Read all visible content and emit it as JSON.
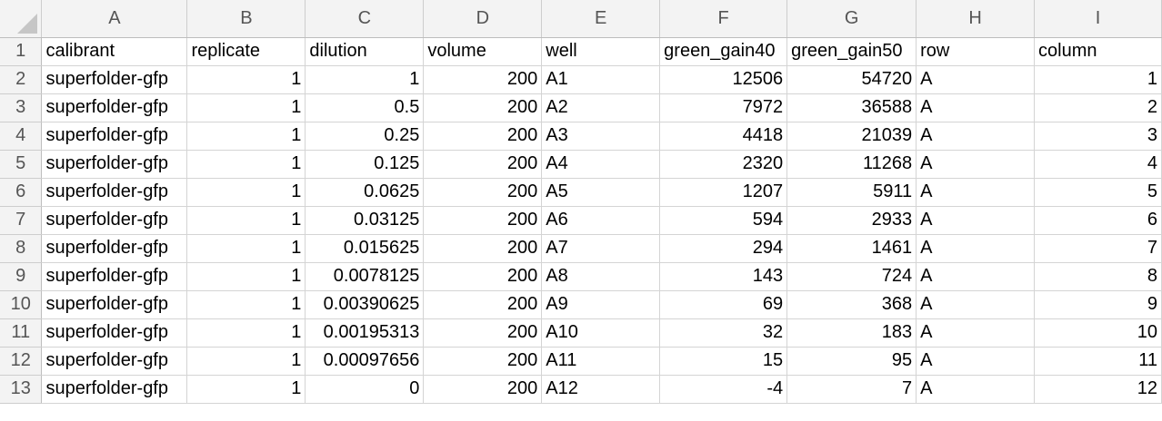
{
  "columns": [
    "A",
    "B",
    "C",
    "D",
    "E",
    "F",
    "G",
    "H",
    "I"
  ],
  "rows": [
    "1",
    "2",
    "3",
    "4",
    "5",
    "6",
    "7",
    "8",
    "9",
    "10",
    "11",
    "12",
    "13"
  ],
  "cells": [
    [
      "calibrant",
      "replicate",
      "dilution",
      "volume",
      "well",
      "green_gain40",
      "green_gain50",
      "row",
      "column"
    ],
    [
      "superfolder-gfp",
      "1",
      "1",
      "200",
      "A1",
      "12506",
      "54720",
      "A",
      "1"
    ],
    [
      "superfolder-gfp",
      "1",
      "0.5",
      "200",
      "A2",
      "7972",
      "36588",
      "A",
      "2"
    ],
    [
      "superfolder-gfp",
      "1",
      "0.25",
      "200",
      "A3",
      "4418",
      "21039",
      "A",
      "3"
    ],
    [
      "superfolder-gfp",
      "1",
      "0.125",
      "200",
      "A4",
      "2320",
      "11268",
      "A",
      "4"
    ],
    [
      "superfolder-gfp",
      "1",
      "0.0625",
      "200",
      "A5",
      "1207",
      "5911",
      "A",
      "5"
    ],
    [
      "superfolder-gfp",
      "1",
      "0.03125",
      "200",
      "A6",
      "594",
      "2933",
      "A",
      "6"
    ],
    [
      "superfolder-gfp",
      "1",
      "0.015625",
      "200",
      "A7",
      "294",
      "1461",
      "A",
      "7"
    ],
    [
      "superfolder-gfp",
      "1",
      "0.0078125",
      "200",
      "A8",
      "143",
      "724",
      "A",
      "8"
    ],
    [
      "superfolder-gfp",
      "1",
      "0.00390625",
      "200",
      "A9",
      "69",
      "368",
      "A",
      "9"
    ],
    [
      "superfolder-gfp",
      "1",
      "0.00195313",
      "200",
      "A10",
      "32",
      "183",
      "A",
      "10"
    ],
    [
      "superfolder-gfp",
      "1",
      "0.00097656",
      "200",
      "A11",
      "15",
      "95",
      "A",
      "11"
    ],
    [
      "superfolder-gfp",
      "1",
      "0",
      "200",
      "A12",
      "-4",
      "7",
      "A",
      "12"
    ]
  ],
  "numeric_columns": [
    1,
    2,
    3,
    5,
    6,
    8
  ]
}
